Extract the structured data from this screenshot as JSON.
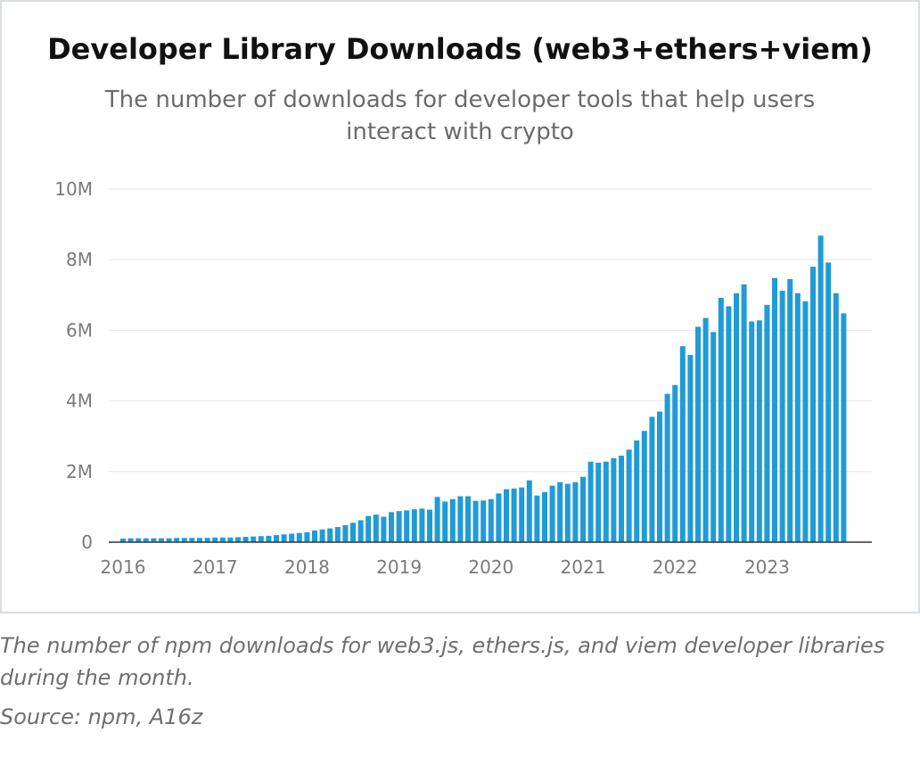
{
  "chart_data": {
    "type": "bar",
    "title": "Developer Library Downloads (web3+ethers+viem)",
    "subtitle": "The number of downloads for developer tools that help users interact with crypto",
    "xlabel": "",
    "ylabel": "",
    "ylim": [
      0,
      10000000
    ],
    "y_ticks": [
      "0",
      "2M",
      "4M",
      "6M",
      "8M",
      "10M"
    ],
    "x_tick_labels": [
      "2016",
      "2017",
      "2018",
      "2019",
      "2020",
      "2021",
      "2022",
      "2023"
    ],
    "grid": true,
    "bar_color": "#1f9bd7",
    "start": "2016-01",
    "values": [
      0.1,
      0.11,
      0.11,
      0.11,
      0.11,
      0.11,
      0.11,
      0.12,
      0.12,
      0.12,
      0.12,
      0.12,
      0.13,
      0.13,
      0.13,
      0.14,
      0.15,
      0.16,
      0.17,
      0.18,
      0.2,
      0.22,
      0.24,
      0.26,
      0.28,
      0.33,
      0.36,
      0.39,
      0.43,
      0.48,
      0.55,
      0.62,
      0.74,
      0.78,
      0.72,
      0.85,
      0.88,
      0.9,
      0.93,
      0.95,
      0.92,
      1.28,
      1.15,
      1.22,
      1.3,
      1.3,
      1.17,
      1.18,
      1.22,
      1.38,
      1.5,
      1.52,
      1.55,
      1.75,
      1.32,
      1.42,
      1.6,
      1.7,
      1.65,
      1.7,
      1.85,
      2.28,
      2.25,
      2.28,
      2.38,
      2.45,
      2.62,
      2.88,
      3.15,
      3.55,
      3.7,
      4.2,
      4.45,
      5.55,
      5.3,
      6.1,
      6.35,
      5.95,
      6.92,
      6.68,
      7.05,
      7.3,
      6.25,
      6.28,
      6.72,
      7.48,
      7.12,
      7.45,
      7.05,
      6.82,
      7.8,
      8.68,
      7.92,
      7.05,
      6.48
    ],
    "value_unit": "M"
  },
  "footnote": "The number of npm downloads for web3.js, ethers.js, and viem developer libraries during the month.",
  "source": "Source: npm, A16z"
}
